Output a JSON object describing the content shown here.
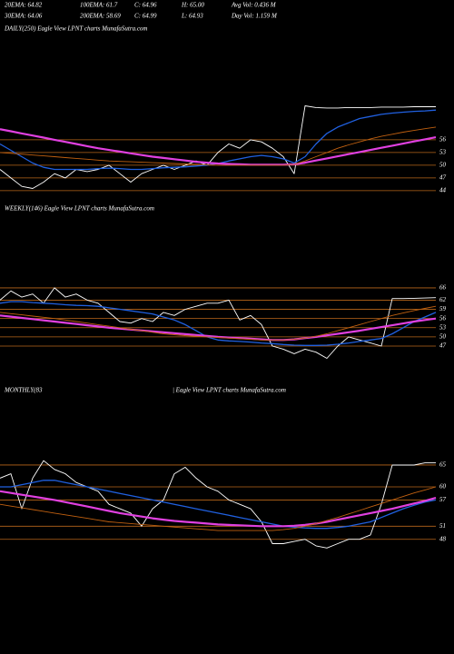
{
  "header": {
    "row1": [
      "20EMA: 64.82",
      "100EMA: 61.7",
      "C: 64.96",
      "H: 65.00",
      "Avg Vol: 0.436  M"
    ],
    "row2": [
      "30EMA: 64.06",
      "200EMA: 58.69",
      "C: 64.99",
      "L: 64.93",
      "Day Vol: 1.159 M"
    ]
  },
  "chart_data": [
    {
      "type": "line",
      "title": "DAILY(250) Eagle  View  LPNT charts MunafaSutra.com",
      "ylim": [
        41.4,
        80.4
      ],
      "yticks": [
        56,
        53,
        50,
        47,
        44
      ],
      "grid": true,
      "series": [
        {
          "color": "#ffffff",
          "values": [
            49,
            47,
            45,
            44.5,
            46,
            48,
            47,
            49,
            48.5,
            49,
            50,
            48,
            46,
            48,
            49,
            50,
            49,
            50,
            51,
            50,
            53,
            55,
            54,
            56,
            55.5,
            54,
            52,
            48,
            64,
            63.6,
            63.5,
            63.5,
            63.6,
            63.6,
            63.6,
            63.7,
            63.7,
            63.7,
            63.8,
            63.8,
            63.8
          ]
        },
        {
          "color": "#2060e0",
          "values": [
            55,
            53.5,
            52,
            50.5,
            49.5,
            49,
            49,
            49,
            49,
            49.2,
            49.3,
            49.2,
            49,
            49,
            49.2,
            49.4,
            49.5,
            49.6,
            49.8,
            50,
            50.4,
            51,
            51.5,
            52,
            52.3,
            52,
            51.5,
            50.5,
            52,
            55,
            57.5,
            59,
            60,
            61,
            61.5,
            62,
            62.3,
            62.5,
            62.7,
            62.8,
            63
          ]
        },
        {
          "color": "#e040e0",
          "values": [
            58.5,
            58,
            57.5,
            57,
            56.5,
            56,
            55.5,
            55,
            54.5,
            54,
            53.6,
            53.2,
            52.8,
            52.4,
            52,
            51.7,
            51.4,
            51.1,
            50.8,
            50.6,
            50.4,
            50.3,
            50.2,
            50.1,
            50.1,
            50.1,
            50.1,
            50.2,
            50.6,
            51.1,
            51.6,
            52.1,
            52.6,
            53.1,
            53.6,
            54.1,
            54.6,
            55.1,
            55.6,
            56.1,
            56.6
          ]
        },
        {
          "color": "#c06010",
          "values": [
            53,
            52.8,
            52.6,
            52.4,
            52.2,
            52,
            51.8,
            51.6,
            51.4,
            51.2,
            51,
            50.9,
            50.8,
            50.7,
            50.6,
            50.5,
            50.4,
            50.3,
            50.2,
            50.1,
            50,
            50,
            50,
            50,
            50,
            50,
            50,
            50.2,
            51,
            52,
            53,
            54,
            54.8,
            55.5,
            56.2,
            56.8,
            57.3,
            57.8,
            58.2,
            58.6,
            59
          ]
        }
      ]
    },
    {
      "type": "line",
      "title": "WEEKLY(146) Eagle  View  LPNT charts MunafaSutra.com",
      "ylim": [
        38.4,
        90.3
      ],
      "yticks": [
        66,
        62,
        59,
        56,
        53,
        50,
        47
      ],
      "grid": true,
      "series": [
        {
          "color": "#ffffff",
          "values": [
            62,
            65,
            63,
            64,
            61,
            66,
            63,
            64,
            62,
            61,
            58,
            55,
            54.5,
            56,
            55,
            58,
            57,
            59,
            60,
            61,
            61,
            62,
            55.5,
            57,
            54,
            47,
            46,
            44.5,
            46,
            45,
            43,
            47,
            50,
            49,
            48,
            47,
            62.5,
            62.5,
            62.6,
            62.7,
            62.8
          ]
        },
        {
          "color": "#2060e0",
          "values": [
            61,
            61.5,
            61.5,
            61.2,
            61,
            60.8,
            60.5,
            60.3,
            60.2,
            60,
            59.5,
            59,
            58.5,
            58,
            57.5,
            56.5,
            55.5,
            54,
            52,
            50,
            49,
            48.7,
            48.5,
            48.3,
            48,
            47.8,
            47.5,
            47.3,
            47.2,
            47.2,
            47.3,
            47.6,
            48,
            48.5,
            49,
            49.5,
            51,
            53,
            55,
            56.5,
            58
          ]
        },
        {
          "color": "#e040e0",
          "values": [
            57,
            56.6,
            56.2,
            55.8,
            55.4,
            55,
            54.6,
            54.2,
            53.8,
            53.4,
            53,
            52.7,
            52.4,
            52.1,
            51.8,
            51.5,
            51.2,
            50.9,
            50.6,
            50.3,
            50,
            49.8,
            49.6,
            49.4,
            49.2,
            49,
            49,
            49.2,
            49.6,
            50,
            50.5,
            51,
            51.5,
            52,
            52.6,
            53.2,
            53.8,
            54.4,
            55,
            55.5,
            56
          ]
        },
        {
          "color": "#c06010",
          "values": [
            58,
            57.6,
            57.2,
            56.8,
            56.4,
            56,
            55.5,
            55,
            54.5,
            54,
            53.5,
            53,
            52.5,
            52,
            51.5,
            51,
            50.7,
            50.4,
            50.2,
            50,
            49.8,
            49.6,
            49.4,
            49.2,
            49,
            49,
            49,
            49.2,
            49.6,
            50.2,
            51,
            52,
            53,
            54,
            55,
            56,
            57,
            57.8,
            58.6,
            59.3,
            60
          ]
        }
      ]
    },
    {
      "type": "line",
      "title": "MONTHLY(83",
      "subtitle": "| Eagle  View  LPNT charts MunafaSutra.com",
      "ylim": [
        44.2,
        81
      ],
      "yticks": [
        65,
        60,
        57,
        51,
        48
      ],
      "grid": true,
      "series": [
        {
          "color": "#ffffff",
          "values": [
            62,
            63,
            55,
            62,
            66,
            64,
            63,
            61,
            60,
            59,
            56,
            55,
            54,
            51,
            55,
            57,
            63,
            64.5,
            62,
            60,
            59,
            57,
            56,
            55,
            52,
            47,
            47,
            47.5,
            48,
            46.5,
            46,
            47,
            48,
            48,
            49,
            56,
            65,
            65,
            65,
            65.5,
            65.5
          ]
        },
        {
          "color": "#2060e0",
          "values": [
            60,
            60,
            60.5,
            61,
            61.5,
            61.5,
            61,
            60.5,
            60,
            59.5,
            59,
            58.5,
            58,
            57.5,
            57,
            56.5,
            56,
            55.5,
            55,
            54.5,
            54,
            53.5,
            53,
            52.5,
            52,
            51.5,
            51,
            50.8,
            50.6,
            50.5,
            50.5,
            50.7,
            51,
            51.5,
            52,
            53,
            54,
            55,
            55.8,
            56.5,
            57
          ]
        },
        {
          "color": "#e040e0",
          "values": [
            59,
            58.6,
            58.2,
            57.8,
            57.4,
            57,
            56.5,
            56,
            55.5,
            55,
            54.5,
            54,
            53.6,
            53.2,
            52.8,
            52.5,
            52.2,
            52,
            51.8,
            51.6,
            51.4,
            51.3,
            51.2,
            51.1,
            51,
            51,
            51,
            51.1,
            51.3,
            51.6,
            52,
            52.5,
            53,
            53.5,
            54,
            54.5,
            55,
            55.6,
            56.2,
            56.8,
            57.5
          ]
        },
        {
          "color": "#c06010",
          "values": [
            56,
            55.6,
            55.2,
            54.8,
            54.4,
            54,
            53.6,
            53.2,
            52.8,
            52.4,
            52,
            51.8,
            51.6,
            51.4,
            51.2,
            51,
            50.8,
            50.6,
            50.4,
            50.2,
            50,
            50,
            50,
            50,
            50,
            50,
            50.2,
            50.5,
            51,
            51.6,
            52.3,
            53,
            53.8,
            54.6,
            55.4,
            56.2,
            57,
            57.8,
            58.6,
            59.3,
            60
          ]
        }
      ]
    }
  ]
}
